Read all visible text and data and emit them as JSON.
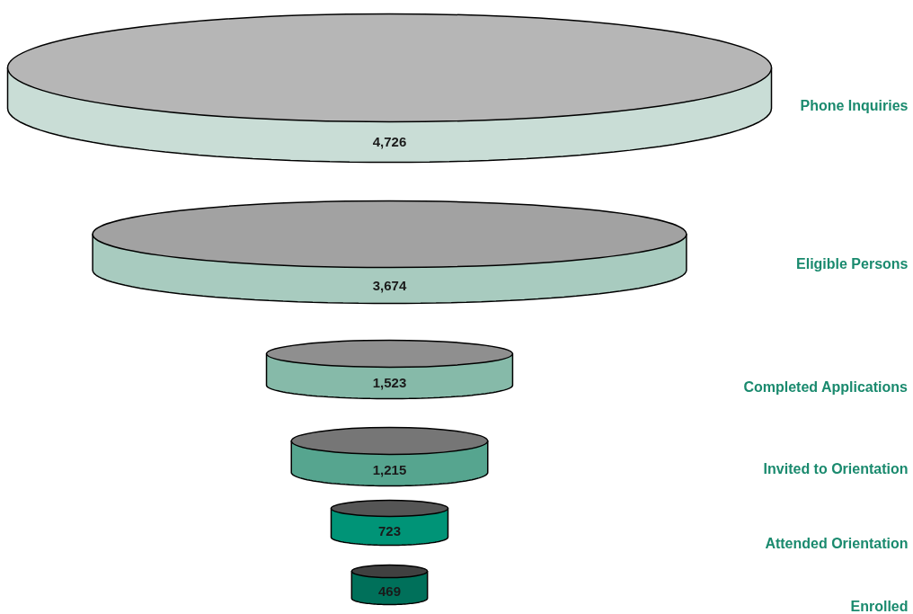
{
  "chart_data": {
    "type": "other",
    "categories": [
      "Phone Inquiries",
      "Eligible Persons",
      "Completed Applications",
      "Invited to Orientation",
      "Attended Orientation",
      "Enrolled"
    ],
    "values": [
      4726,
      3674,
      1523,
      1215,
      723,
      469
    ],
    "value_labels": [
      "4,726",
      "3,674",
      "1,523",
      "1,215",
      "723",
      "469"
    ],
    "colors": [
      "#c9ddd6",
      "#a8cbbf",
      "#86baa9",
      "#56a58f",
      "#009477",
      "#00705a"
    ]
  }
}
